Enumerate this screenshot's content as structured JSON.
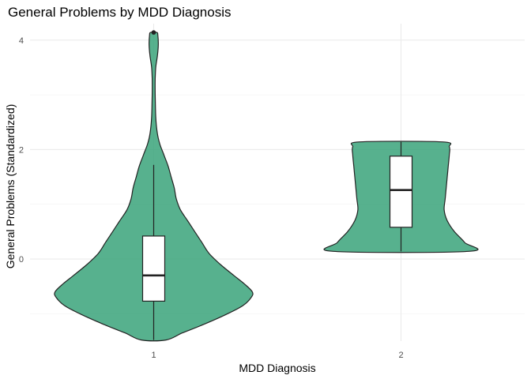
{
  "chart_data": {
    "type": "violin",
    "title": "General Problems by MDD Diagnosis",
    "xlabel": "MDD Diagnosis",
    "ylabel": "General Problems (Standardized)",
    "categories": [
      "1",
      "2"
    ],
    "y_ticks": [
      0,
      2,
      4
    ],
    "ylim": [
      -1.5,
      4.3
    ],
    "grid": true,
    "legend": "none",
    "colors": {
      "violin_fill": "#3aa37a",
      "box_fill": "#ffffff",
      "outline": "#222222",
      "outlier": "#222222"
    },
    "groups": [
      {
        "category": "1",
        "box": {
          "min": -1.48,
          "q1": -0.77,
          "median": -0.3,
          "q3": 0.42,
          "max": 1.72
        },
        "outliers": [
          4.14
        ],
        "density": [
          [
            -1.48,
            0.12
          ],
          [
            -1.35,
            0.28
          ],
          [
            -1.2,
            0.48
          ],
          [
            -1.0,
            0.72
          ],
          [
            -0.85,
            0.87
          ],
          [
            -0.7,
            0.95
          ],
          [
            -0.6,
            0.96
          ],
          [
            -0.45,
            0.88
          ],
          [
            -0.3,
            0.78
          ],
          [
            -0.1,
            0.65
          ],
          [
            0.1,
            0.54
          ],
          [
            0.3,
            0.47
          ],
          [
            0.5,
            0.4
          ],
          [
            0.7,
            0.33
          ],
          [
            0.9,
            0.26
          ],
          [
            1.1,
            0.22
          ],
          [
            1.3,
            0.2
          ],
          [
            1.5,
            0.17
          ],
          [
            1.7,
            0.14
          ],
          [
            1.9,
            0.1
          ],
          [
            2.1,
            0.06
          ],
          [
            2.3,
            0.035
          ],
          [
            2.6,
            0.02
          ],
          [
            3.0,
            0.015
          ],
          [
            3.3,
            0.015
          ],
          [
            3.5,
            0.02
          ],
          [
            3.7,
            0.035
          ],
          [
            3.9,
            0.045
          ],
          [
            4.1,
            0.04
          ],
          [
            4.14,
            0.03
          ]
        ]
      },
      {
        "category": "2",
        "box": {
          "min": 0.14,
          "q1": 0.58,
          "median": 1.26,
          "q3": 1.88,
          "max": 2.14
        },
        "outliers": [],
        "density": [
          [
            0.14,
            0.66
          ],
          [
            0.3,
            0.62
          ],
          [
            0.5,
            0.52
          ],
          [
            0.7,
            0.45
          ],
          [
            0.9,
            0.42
          ],
          [
            1.1,
            0.43
          ],
          [
            1.3,
            0.44
          ],
          [
            1.5,
            0.45
          ],
          [
            1.7,
            0.46
          ],
          [
            1.9,
            0.47
          ],
          [
            2.05,
            0.47
          ],
          [
            2.14,
            0.4
          ]
        ]
      }
    ]
  }
}
